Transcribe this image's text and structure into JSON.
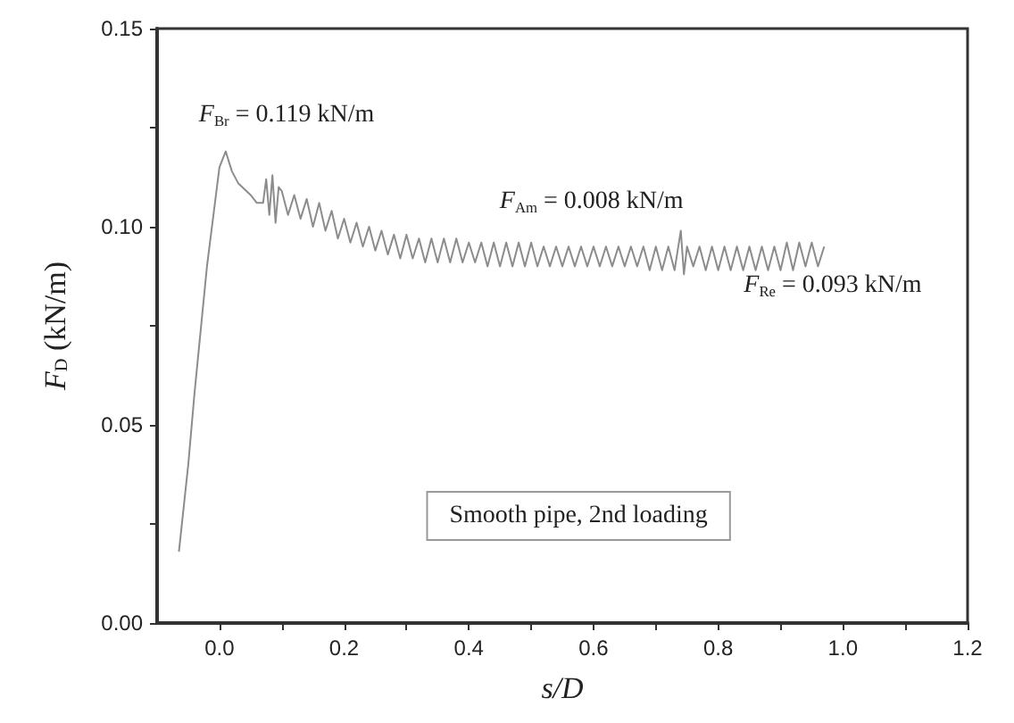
{
  "chart_data": {
    "type": "line",
    "xlabel": "s/D",
    "ylabel": "F$_{D}$ (kN/m)",
    "color": "#8c8c8c",
    "marker": "none",
    "line_style": "solid",
    "xlim": [
      -0.1,
      1.2
    ],
    "xticks": [
      {
        "value": 0,
        "label": "0.0"
      },
      {
        "value": 0.1,
        "label": null
      },
      {
        "value": 0.2,
        "label": "0.2"
      },
      {
        "value": 0.3,
        "label": null
      },
      {
        "value": 0.4,
        "label": "0.4"
      },
      {
        "value": 0.5,
        "label": null
      },
      {
        "value": 0.6,
        "label": "0.6"
      },
      {
        "value": 0.7,
        "label": null
      },
      {
        "value": 0.8,
        "label": "0.8"
      },
      {
        "value": 0.9,
        "label": null
      },
      {
        "value": 1.0,
        "label": "1.0"
      },
      {
        "value": 1.1,
        "label": null
      },
      {
        "value": 1.2,
        "label": "1.2"
      }
    ],
    "ylim": [
      0,
      0.15
    ],
    "yticks": [
      {
        "value": 0,
        "label": "0.00"
      },
      {
        "value": 0.025,
        "label": null
      },
      {
        "value": 0.05,
        "label": "0.05"
      },
      {
        "value": 0.075,
        "label": null
      },
      {
        "value": 0.1,
        "label": "0.10"
      },
      {
        "value": 0.125,
        "label": null
      },
      {
        "value": 0.15,
        "label": "0.15"
      }
    ],
    "x": [
      -0.065,
      -0.05,
      -0.04,
      -0.02,
      0.0,
      0.01,
      0.02,
      0.03,
      0.05,
      0.06,
      0.07,
      0.075,
      0.08,
      0.085,
      0.09,
      0.095,
      0.1,
      0.11,
      0.12,
      0.13,
      0.14,
      0.15,
      0.16,
      0.17,
      0.18,
      0.19,
      0.2,
      0.21,
      0.22,
      0.23,
      0.24,
      0.25,
      0.26,
      0.27,
      0.28,
      0.29,
      0.3,
      0.31,
      0.32,
      0.33,
      0.34,
      0.35,
      0.36,
      0.37,
      0.38,
      0.39,
      0.4,
      0.41,
      0.42,
      0.43,
      0.44,
      0.45,
      0.46,
      0.47,
      0.48,
      0.49,
      0.5,
      0.51,
      0.52,
      0.53,
      0.54,
      0.55,
      0.56,
      0.57,
      0.58,
      0.59,
      0.6,
      0.61,
      0.62,
      0.63,
      0.64,
      0.65,
      0.66,
      0.67,
      0.68,
      0.69,
      0.7,
      0.71,
      0.72,
      0.73,
      0.74,
      0.745,
      0.75,
      0.76,
      0.77,
      0.78,
      0.79,
      0.8,
      0.81,
      0.82,
      0.83,
      0.84,
      0.85,
      0.86,
      0.87,
      0.88,
      0.89,
      0.9,
      0.91,
      0.92,
      0.93,
      0.94,
      0.95,
      0.96,
      0.97
    ],
    "values": [
      0.018,
      0.04,
      0.058,
      0.09,
      0.115,
      0.119,
      0.114,
      0.111,
      0.108,
      0.106,
      0.106,
      0.112,
      0.103,
      0.113,
      0.101,
      0.11,
      0.109,
      0.103,
      0.108,
      0.102,
      0.107,
      0.1,
      0.106,
      0.099,
      0.104,
      0.097,
      0.102,
      0.096,
      0.101,
      0.095,
      0.1,
      0.094,
      0.099,
      0.093,
      0.098,
      0.092,
      0.098,
      0.092,
      0.097,
      0.091,
      0.097,
      0.091,
      0.097,
      0.091,
      0.097,
      0.091,
      0.096,
      0.091,
      0.096,
      0.09,
      0.096,
      0.09,
      0.096,
      0.09,
      0.096,
      0.09,
      0.096,
      0.09,
      0.095,
      0.09,
      0.095,
      0.09,
      0.095,
      0.09,
      0.095,
      0.09,
      0.095,
      0.09,
      0.095,
      0.09,
      0.095,
      0.09,
      0.095,
      0.09,
      0.095,
      0.089,
      0.095,
      0.089,
      0.095,
      0.089,
      0.099,
      0.088,
      0.095,
      0.09,
      0.095,
      0.089,
      0.095,
      0.089,
      0.095,
      0.089,
      0.095,
      0.089,
      0.095,
      0.089,
      0.095,
      0.089,
      0.095,
      0.089,
      0.096,
      0.089,
      0.096,
      0.09,
      0.096,
      0.09,
      0.095
    ],
    "annotations": [
      {
        "text": "F$_{Br}$ = 0.119 kN/m",
        "x": 0.01,
        "y": 0.119
      },
      {
        "text": "F$_{Am}$ = 0.008 kN/m",
        "x": 0.65,
        "y": 0.097
      },
      {
        "text": "F$_{Re}$ = 0.093 kN/m",
        "x": 0.97,
        "y": 0.093
      },
      "Smooth pipe, 2nd loading"
    ]
  }
}
